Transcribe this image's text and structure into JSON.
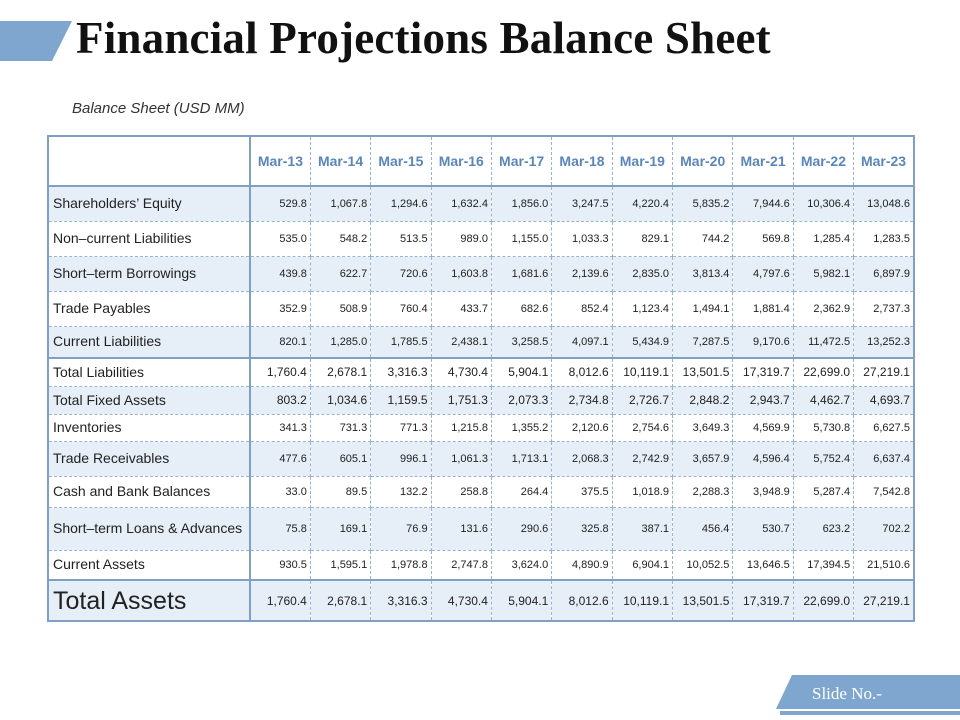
{
  "title": "Financial Projections Balance Sheet",
  "subtitle": "Balance Sheet (USD MM)",
  "columns": [
    "Mar-13",
    "Mar-14",
    "Mar-15",
    "Mar-16",
    "Mar-17",
    "Mar-18",
    "Mar-19",
    "Mar-20",
    "Mar-21",
    "Mar-22",
    "Mar-23"
  ],
  "rows": [
    {
      "label": "Shareholders’ Equity",
      "values": [
        "529.8",
        "1,067.8",
        "1,294.6",
        "1,632.4",
        "1,856.0",
        "3,247.5",
        "4,220.4",
        "5,835.2",
        "7,944.6",
        "10,306.4",
        "13,048.6"
      ]
    },
    {
      "label": "Non–current Liabilities",
      "values": [
        "535.0",
        "548.2",
        "513.5",
        "989.0",
        "1,155.0",
        "1,033.3",
        "829.1",
        "744.2",
        "569.8",
        "1,285.4",
        "1,283.5"
      ]
    },
    {
      "label": "Short–term Borrowings",
      "values": [
        "439.8",
        "622.7",
        "720.6",
        "1,603.8",
        "1,681.6",
        "2,139.6",
        "2,835.0",
        "3,813.4",
        "4,797.6",
        "5,982.1",
        "6,897.9"
      ]
    },
    {
      "label": "Trade Payables",
      "values": [
        "352.9",
        "508.9",
        "760.4",
        "433.7",
        "682.6",
        "852.4",
        "1,123.4",
        "1,494.1",
        "1,881.4",
        "2,362.9",
        "2,737.3"
      ]
    },
    {
      "label": "Current Liabilities",
      "values": [
        "820.1",
        "1,285.0",
        "1,785.5",
        "2,438.1",
        "3,258.5",
        "4,097.1",
        "5,434.9",
        "7,287.5",
        "9,170.6",
        "11,472.5",
        "13,252.3"
      ]
    },
    {
      "label": "Total Liabilities",
      "values": [
        "1,760.4",
        "2,678.1",
        "3,316.3",
        "4,730.4",
        "5,904.1",
        "8,012.6",
        "10,119.1",
        "13,501.5",
        "17,319.7",
        "22,699.0",
        "27,219.1"
      ]
    },
    {
      "label": "Total Fixed Assets",
      "values": [
        "803.2",
        "1,034.6",
        "1,159.5",
        "1,751.3",
        "2,073.3",
        "2,734.8",
        "2,726.7",
        "2,848.2",
        "2,943.7",
        "4,462.7",
        "4,693.7"
      ]
    },
    {
      "label": "Inventories",
      "values": [
        "341.3",
        "731.3",
        "771.3",
        "1,215.8",
        "1,355.2",
        "2,120.6",
        "2,754.6",
        "3,649.3",
        "4,569.9",
        "5,730.8",
        "6,627.5"
      ]
    },
    {
      "label": "Trade Receivables",
      "values": [
        "477.6",
        "605.1",
        "996.1",
        "1,061.3",
        "1,713.1",
        "2,068.3",
        "2,742.9",
        "3,657.9",
        "4,596.4",
        "5,752.4",
        "6,637.4"
      ]
    },
    {
      "label": "Cash and Bank Balances",
      "values": [
        "33.0",
        "89.5",
        "132.2",
        "258.8",
        "264.4",
        "375.5",
        "1,018.9",
        "2,288.3",
        "3,948.9",
        "5,287.4",
        "7,542.8"
      ]
    },
    {
      "label": "Short–term Loans & Advances",
      "values": [
        "75.8",
        "169.1",
        "76.9",
        "131.6",
        "290.6",
        "325.8",
        "387.1",
        "456.4",
        "530.7",
        "623.2",
        "702.2"
      ]
    },
    {
      "label": "Current Assets",
      "values": [
        "930.5",
        "1,595.1",
        "1,978.8",
        "2,747.8",
        "3,624.0",
        "4,890.9",
        "6,904.1",
        "10,052.5",
        "13,646.5",
        "17,394.5",
        "21,510.6"
      ]
    },
    {
      "label": "Total Assets",
      "values": [
        "1,760.4",
        "2,678.1",
        "3,316.3",
        "4,730.4",
        "5,904.1",
        "8,012.6",
        "10,119.1",
        "13,501.5",
        "17,319.7",
        "22,699.0",
        "27,219.1"
      ]
    }
  ],
  "footer": {
    "slide_no": "Slide No.-"
  },
  "colors": {
    "header_text": "#5b86b8",
    "band": "#7fa6cf",
    "row_alt": "#e6eef7",
    "grid": "#9bb3cc"
  }
}
